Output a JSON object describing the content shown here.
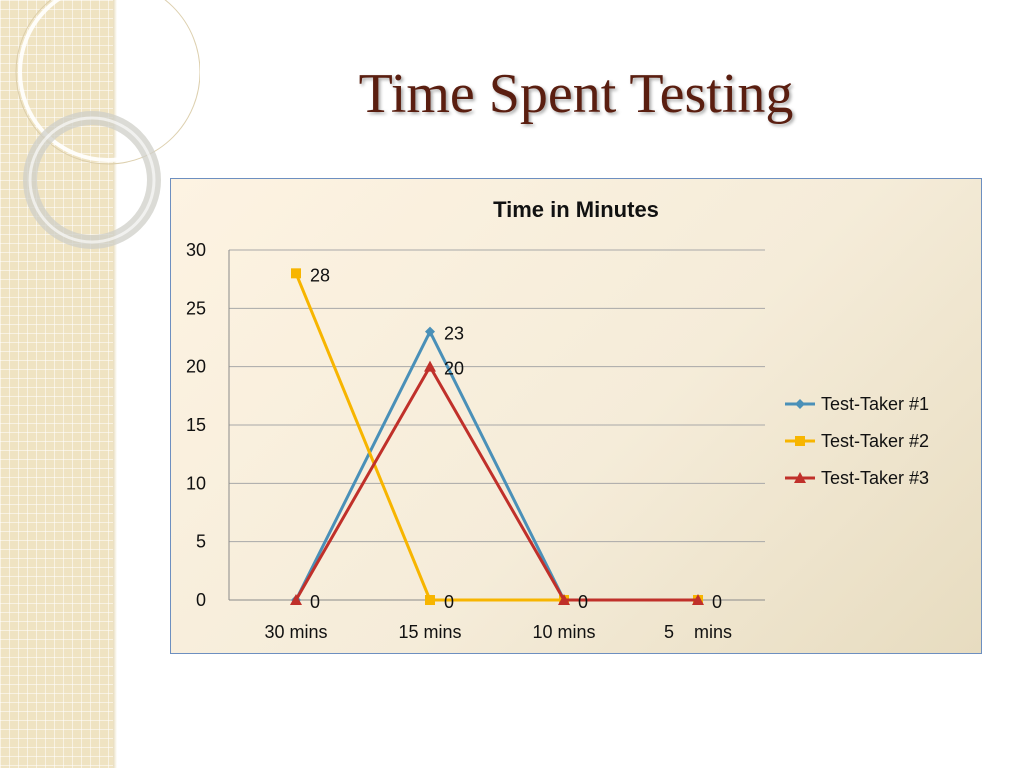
{
  "slide": {
    "title": "Time Spent Testing"
  },
  "chart_data": {
    "type": "line",
    "title": "Time in Minutes",
    "xlabel": "",
    "ylabel": "",
    "categories": [
      "30 mins",
      "15 mins",
      "10 mins",
      "5    mins"
    ],
    "ylim": [
      0,
      30
    ],
    "yticks": [
      0,
      5,
      10,
      15,
      20,
      25,
      30
    ],
    "grid": true,
    "legend_position": "right",
    "series": [
      {
        "name": "Test-Taker #1",
        "values": [
          0,
          23,
          0,
          0
        ],
        "color": "#4a90b8",
        "marker": "diamond",
        "labels": [
          null,
          "23",
          null,
          null
        ]
      },
      {
        "name": "Test-Taker #2",
        "values": [
          28,
          0,
          0,
          0
        ],
        "color": "#f7b500",
        "marker": "square",
        "labels": [
          "28",
          "0",
          null,
          null
        ]
      },
      {
        "name": "Test-Taker #3",
        "values": [
          0,
          20,
          0,
          0
        ],
        "color": "#c0302a",
        "marker": "triangle",
        "labels": [
          "0",
          "20",
          "0",
          "0"
        ]
      }
    ]
  }
}
